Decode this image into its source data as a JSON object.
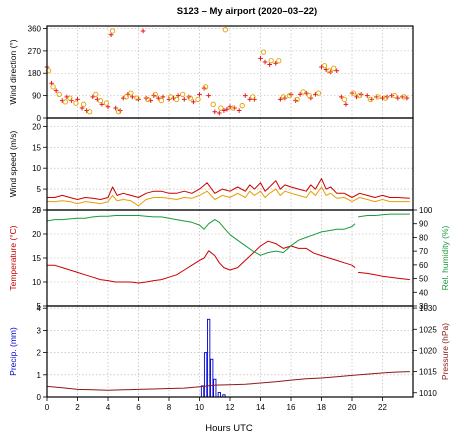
{
  "chart_data": {
    "title": "S123 – My airport  (2020–03–22)",
    "xlabel": "Hours UTC",
    "xlim": [
      0,
      24
    ],
    "x_ticks": [
      "0",
      "2",
      "4",
      "6",
      "8",
      "10",
      "12",
      "14",
      "16",
      "18",
      "20",
      "22"
    ],
    "grid": true,
    "colors": {
      "wind_dir": "#e31a1c",
      "wind_gust": "#e69f00",
      "wind_speed": "#cc0000",
      "temperature": "#cc0000",
      "humidity": "#1a9b3a",
      "precip": "#0000cc",
      "pressure": "#8b1a1a"
    },
    "panels": [
      {
        "type": "scatter",
        "ylabel": "Wind direction (°)",
        "ylim": [
          0,
          370
        ],
        "y_ticks": [
          "0",
          "90",
          "180",
          "270",
          "360"
        ],
        "series": [
          {
            "marker": "cross",
            "color": "#e31a1c",
            "x": [
              0,
              0.3,
              0.6,
              1,
              1.3,
              1.6,
              2,
              2.3,
              2.6,
              3,
              3.3,
              3.6,
              4,
              4.2,
              4.5,
              4.8,
              5,
              5.3,
              5.6,
              6,
              6.3,
              6.5,
              6.8,
              7,
              7.3,
              7.6,
              8,
              8.3,
              8.6,
              9,
              9.3,
              9.6,
              10,
              10.3,
              10.6,
              11,
              11.3,
              11.6,
              11.8,
              12,
              12.3,
              12.6,
              13,
              13.3,
              13.6,
              14,
              14.3,
              14.6,
              15,
              15.3,
              15.6,
              16,
              16.3,
              16.6,
              17,
              17.3,
              17.6,
              18,
              18.3,
              18.6,
              19,
              19.3,
              19.6,
              20,
              20.3,
              20.6,
              21,
              21.3,
              21.6,
              22,
              22.3,
              22.6,
              23,
              23.3,
              23.6
            ],
            "y": [
              205,
              140,
              110,
              70,
              85,
              70,
              75,
              40,
              30,
              85,
              75,
              55,
              45,
              335,
              40,
              30,
              80,
              95,
              85,
              75,
              350,
              80,
              70,
              90,
              80,
              85,
              75,
              80,
              90,
              75,
              85,
              65,
              95,
              120,
              90,
              25,
              20,
              30,
              35,
              45,
              40,
              30,
              90,
              75,
              75,
              240,
              225,
              215,
              220,
              75,
              80,
              95,
              70,
              95,
              100,
              80,
              95,
              205,
              195,
              185,
              190,
              85,
              55,
              100,
              85,
              95,
              90,
              75,
              85,
              80,
              85,
              90,
              80,
              85,
              80
            ]
          },
          {
            "marker": "circle",
            "color": "#e69f00",
            "x": [
              0.1,
              0.4,
              0.8,
              1.2,
              1.5,
              1.9,
              2.4,
              2.8,
              3.2,
              3.5,
              3.9,
              4.3,
              4.7,
              5.2,
              5.5,
              5.9,
              6.6,
              7.1,
              7.5,
              8.1,
              8.5,
              8.9,
              9.4,
              9.9,
              10.4,
              10.9,
              11.4,
              11.7,
              12.2,
              12.8,
              13.5,
              14.2,
              14.7,
              15.2,
              15.5,
              15.9,
              16.4,
              16.8,
              17.2,
              17.8,
              18.2,
              18.5,
              18.8,
              19.5,
              20.1,
              20.5,
              21.2,
              21.7,
              22.2,
              22.8,
              23.4
            ],
            "y": [
              190,
              125,
              95,
              65,
              80,
              60,
              55,
              25,
              95,
              70,
              60,
              350,
              25,
              85,
              100,
              80,
              75,
              95,
              70,
              85,
              75,
              95,
              80,
              75,
              125,
              55,
              40,
              355,
              40,
              50,
              85,
              265,
              230,
              230,
              85,
              90,
              75,
              105,
              90,
              100,
              210,
              190,
              200,
              75,
              100,
              90,
              75,
              85,
              80,
              90,
              85
            ]
          }
        ]
      },
      {
        "type": "line",
        "ylabel": "Wind speed (m/s)",
        "ylim": [
          0,
          22
        ],
        "y_ticks": [
          "0",
          "5",
          "10",
          "15",
          "20"
        ],
        "series": [
          {
            "color": "#cc0000",
            "x": [
              0,
              0.5,
              1,
              1.5,
              2,
              2.5,
              3,
              3.5,
              4,
              4.3,
              4.6,
              5,
              5.5,
              6,
              6.5,
              7,
              7.5,
              8,
              8.5,
              9,
              9.5,
              10,
              10.5,
              11,
              11.5,
              12,
              12.5,
              13,
              13.3,
              13.6,
              14,
              14.3,
              14.6,
              15,
              15.3,
              15.6,
              16,
              16.5,
              17,
              17.3,
              17.6,
              18,
              18.3,
              18.6,
              19,
              19.5,
              20,
              20.5,
              21,
              21.5,
              22,
              22.5,
              23,
              23.8
            ],
            "y": [
              3,
              3,
              3.5,
              3,
              2.5,
              3,
              2.8,
              2.5,
              3,
              5.5,
              3.5,
              4,
              3.5,
              3,
              4,
              4.5,
              4.5,
              4,
              4,
              4.5,
              4,
              5,
              6.5,
              4,
              5,
              4.5,
              5.5,
              4.5,
              6,
              5,
              6.5,
              4.5,
              5.5,
              7,
              5,
              6,
              5.5,
              5,
              4.5,
              6,
              5,
              7.5,
              5,
              5.5,
              4,
              4,
              3,
              4,
              3.5,
              3,
              3.5,
              3,
              3,
              2.8
            ]
          },
          {
            "color": "#e69f00",
            "x": [
              0,
              0.5,
              1,
              1.5,
              2,
              2.5,
              3,
              3.5,
              4,
              4.3,
              4.6,
              5,
              5.5,
              6,
              6.5,
              7,
              7.5,
              8,
              8.5,
              9,
              9.5,
              10,
              10.5,
              11,
              11.5,
              12,
              12.5,
              13,
              13.3,
              13.6,
              14,
              14.3,
              14.6,
              15,
              15.3,
              15.6,
              16,
              16.5,
              17,
              17.3,
              17.6,
              18,
              18.3,
              18.6,
              19,
              19.5,
              20,
              20.5,
              21,
              21.5,
              22,
              22.5,
              23,
              23.8
            ],
            "y": [
              2,
              2,
              2.2,
              2,
              1.5,
              2,
              1.8,
              1.5,
              2,
              3.5,
              2.2,
              2.5,
              2.2,
              1,
              2.5,
              3,
              3,
              2.8,
              2.5,
              3,
              2.8,
              3.5,
              4.5,
              2.5,
              3.5,
              3,
              4,
              3,
              4.5,
              3.5,
              4.5,
              3,
              4,
              5,
              3.5,
              4.5,
              4,
              3.5,
              3,
              4.5,
              3.5,
              5.5,
              3.5,
              4,
              2.8,
              3,
              2,
              3,
              2.5,
              2,
              2.5,
              2,
              2,
              2
            ]
          }
        ]
      },
      {
        "type": "line",
        "ylabel": "Temperature (°C)",
        "ylabel2": "Rel. humidity (%)",
        "ylim": [
          5,
          25
        ],
        "ylim2": [
          30,
          100
        ],
        "y_ticks": [
          "5",
          "10",
          "15",
          "20",
          "25"
        ],
        "y2_ticks": [
          "30",
          "40",
          "50",
          "60",
          "70",
          "80",
          "90",
          "100"
        ],
        "series": [
          {
            "axis": "left",
            "color": "#cc0000",
            "x": [
              0,
              0.5,
              1,
              1.5,
              2,
              2.5,
              3,
              3.5,
              4,
              4.5,
              5,
              5.5,
              6,
              6.5,
              7,
              7.5,
              8,
              8.5,
              9,
              9.5,
              10,
              10.3,
              10.6,
              11,
              11.3,
              11.6,
              12,
              12.5,
              13,
              13.5,
              14,
              14.5,
              15,
              15.5,
              16,
              16.5,
              17,
              17.5,
              18,
              18.5,
              19,
              19.5,
              20,
              20.2,
              null,
              20.4,
              21,
              21.5,
              22,
              22.5,
              23,
              23.8
            ],
            "y": [
              13.5,
              13.5,
              13,
              12.5,
              12,
              11.5,
              11,
              10.5,
              10.3,
              10,
              10,
              10,
              9.8,
              10,
              10.3,
              10.5,
              11,
              11.5,
              12.5,
              13.5,
              14.5,
              15,
              16.5,
              15.5,
              14,
              13,
              12.5,
              13,
              14.5,
              16,
              17.5,
              18.5,
              18,
              17,
              17.5,
              17,
              17,
              16,
              15.5,
              15,
              14.5,
              14,
              13.5,
              13,
              null,
              12,
              11.8,
              11.5,
              11.2,
              11,
              10.8,
              10.5
            ]
          },
          {
            "axis": "right",
            "color": "#1a9b3a",
            "x": [
              0,
              0.5,
              1,
              1.5,
              2,
              2.5,
              3,
              3.5,
              4,
              4.5,
              5,
              5.5,
              6,
              6.5,
              7,
              7.5,
              8,
              8.5,
              9,
              9.5,
              10,
              10.3,
              10.6,
              11,
              11.3,
              11.6,
              12,
              12.5,
              13,
              13.5,
              14,
              14.5,
              15,
              15.5,
              16,
              16.5,
              17,
              17.5,
              18,
              18.5,
              19,
              19.5,
              20,
              20.2,
              null,
              20.4,
              21,
              21.5,
              22,
              22.5,
              23,
              23.8
            ],
            "y": [
              92,
              93,
              93,
              93.5,
              94,
              94,
              95,
              95.5,
              95.5,
              96,
              96,
              96,
              96,
              95.5,
              95,
              95,
              94,
              93,
              92,
              91,
              89,
              86,
              90,
              93,
              91,
              87,
              82,
              78,
              74,
              70,
              67,
              69,
              70,
              69,
              74,
              78,
              80,
              82,
              84,
              85,
              86,
              86,
              88,
              90,
              null,
              95,
              96,
              96,
              96.5,
              97,
              97,
              97
            ]
          }
        ]
      },
      {
        "type": "bar+line",
        "ylabel": "Precip. (mm)",
        "ylabel2": "Pressure (hPa)",
        "ylim": [
          0,
          4.1
        ],
        "ylim2": [
          1009,
          1030.5
        ],
        "y_ticks": [
          "0",
          "1",
          "2",
          "3",
          "4"
        ],
        "y2_ticks": [
          "1010",
          "1015",
          "1020",
          "1025",
          "1030"
        ],
        "series": [
          {
            "type": "bar",
            "axis": "left",
            "color": "#0000cc",
            "x": [
              10.2,
              10.4,
              10.6,
              10.8,
              11.0,
              11.3,
              11.6
            ],
            "values": [
              0.5,
              2.0,
              3.5,
              1.7,
              0.8,
              0.2,
              0.1
            ]
          },
          {
            "type": "line",
            "axis": "right",
            "color": "#8b1a1a",
            "x": [
              0,
              1,
              2,
              3,
              4,
              5,
              6,
              7,
              8,
              9,
              10,
              11,
              12,
              13,
              14,
              15,
              16,
              17,
              18,
              19,
              20,
              21,
              22,
              23,
              23.8
            ],
            "y": [
              1011.5,
              1011.2,
              1010.8,
              1010.7,
              1010.6,
              1010.7,
              1010.8,
              1010.9,
              1011,
              1011.1,
              1011.4,
              1011.8,
              1011.9,
              1012,
              1012.3,
              1012.6,
              1013,
              1013.3,
              1013.5,
              1013.8,
              1014.1,
              1014.4,
              1014.7,
              1014.9,
              1015
            ]
          }
        ]
      }
    ]
  }
}
